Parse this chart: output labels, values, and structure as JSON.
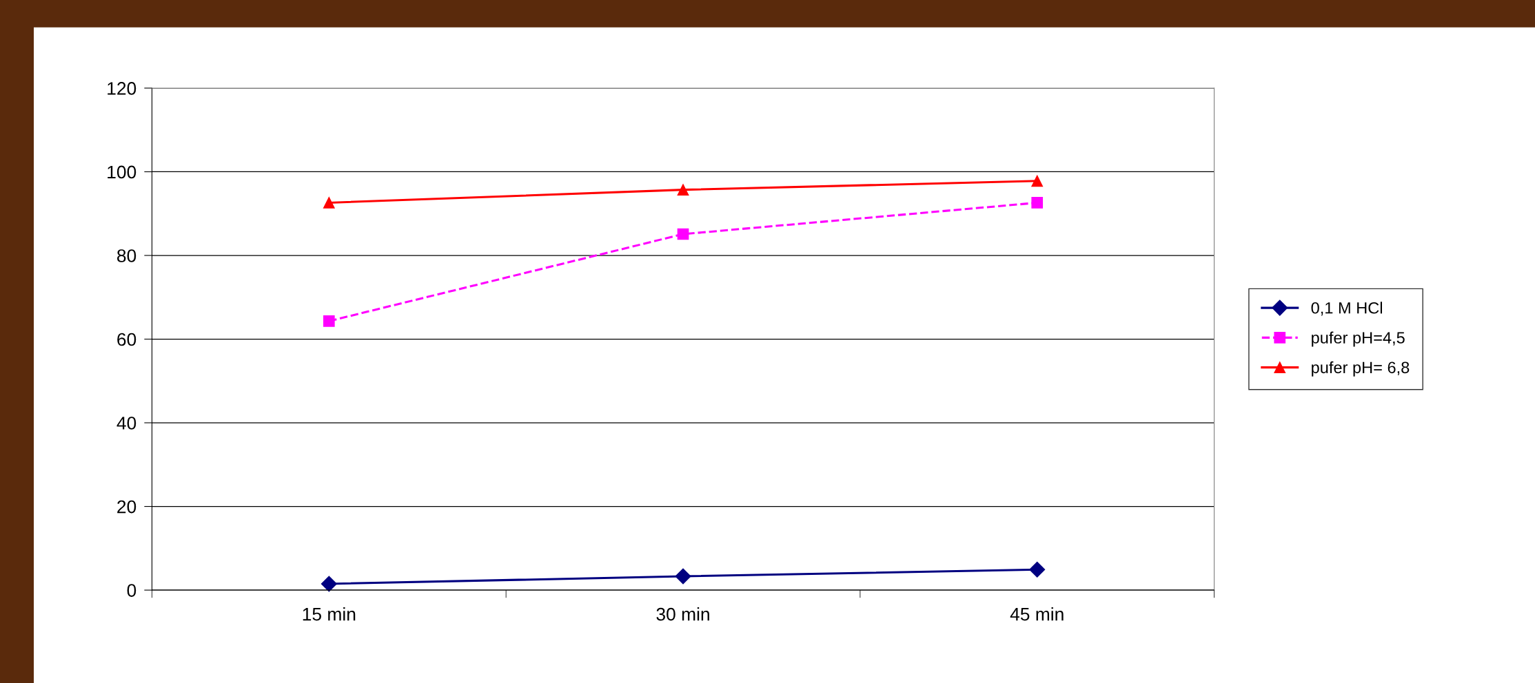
{
  "chart_data": {
    "type": "line",
    "categories": [
      "15 min",
      "30 min",
      "45 min"
    ],
    "series": [
      {
        "name": "0,1 M HCl",
        "color": "#000080",
        "values": [
          1.5,
          3.3,
          4.9
        ],
        "marker": "diamond",
        "line_style": "solid"
      },
      {
        "name": "pufer pH=4,5",
        "color": "#ff00ff",
        "values": [
          64.3,
          85.1,
          92.6
        ],
        "marker": "square",
        "line_style": "dashed"
      },
      {
        "name": "pufer pH= 6,8",
        "color": "#ff0000",
        "values": [
          92.6,
          95.7,
          97.8
        ],
        "marker": "triangle",
        "line_style": "solid"
      }
    ],
    "ylim": [
      0,
      120
    ],
    "yticks": [
      0,
      20,
      40,
      60,
      80,
      100,
      120
    ],
    "grid": "y",
    "legend": "right"
  }
}
